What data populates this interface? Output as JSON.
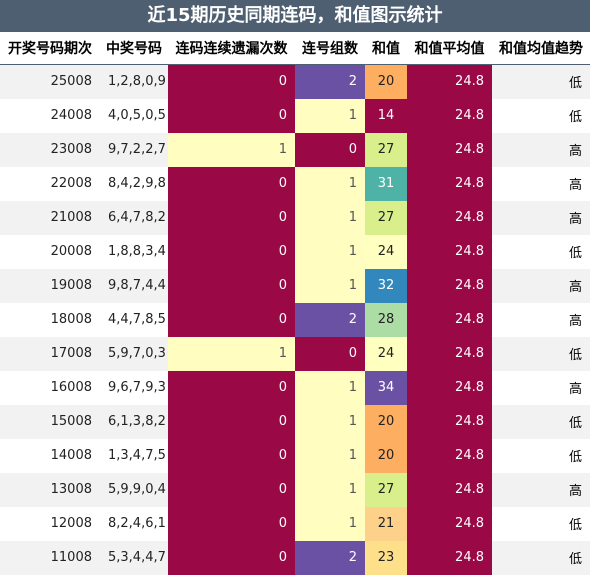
{
  "title": "近15期历史同期连码，和值图示统计",
  "colors": {
    "title_bg": "#4d5f70",
    "heat_0": "#9b0846",
    "heat_1": "#fffdbf",
    "heat_2": "#6a51a3",
    "avg_bg": "#9b0846",
    "sum_20": "#fdae61",
    "sum_21": "#fed18a",
    "sum_23": "#fee08b",
    "sum_24": "#ffffbf",
    "sum_27": "#d9ef8b",
    "sum_28": "#abdda4",
    "sum_31": "#4eb3a6",
    "sum_32": "#3288bd",
    "sum_34": "#6a51a3",
    "sum_14": "#9b0846"
  },
  "chart_data": {
    "type": "table",
    "columns": [
      "开奖号码期次",
      "中奖号码",
      "连码连续遗漏次数",
      "连号组数",
      "和值",
      "和值平均值",
      "和值均值趋势"
    ],
    "rows": [
      {
        "period": "25008",
        "numbers": "1,2,8,0,9",
        "miss": 0,
        "groups": 2,
        "sum": 20,
        "avg": "24.8",
        "trend": "低"
      },
      {
        "period": "24008",
        "numbers": "4,0,5,0,5",
        "miss": 0,
        "groups": 1,
        "sum": 14,
        "avg": "24.8",
        "trend": "低"
      },
      {
        "period": "23008",
        "numbers": "9,7,2,2,7",
        "miss": 1,
        "groups": 0,
        "sum": 27,
        "avg": "24.8",
        "trend": "高"
      },
      {
        "period": "22008",
        "numbers": "8,4,2,9,8",
        "miss": 0,
        "groups": 1,
        "sum": 31,
        "avg": "24.8",
        "trend": "高"
      },
      {
        "period": "21008",
        "numbers": "6,4,7,8,2",
        "miss": 0,
        "groups": 1,
        "sum": 27,
        "avg": "24.8",
        "trend": "高"
      },
      {
        "period": "20008",
        "numbers": "1,8,8,3,4",
        "miss": 0,
        "groups": 1,
        "sum": 24,
        "avg": "24.8",
        "trend": "低"
      },
      {
        "period": "19008",
        "numbers": "9,8,7,4,4",
        "miss": 0,
        "groups": 1,
        "sum": 32,
        "avg": "24.8",
        "trend": "高"
      },
      {
        "period": "18008",
        "numbers": "4,4,7,8,5",
        "miss": 0,
        "groups": 2,
        "sum": 28,
        "avg": "24.8",
        "trend": "高"
      },
      {
        "period": "17008",
        "numbers": "5,9,7,0,3",
        "miss": 1,
        "groups": 0,
        "sum": 24,
        "avg": "24.8",
        "trend": "低"
      },
      {
        "period": "16008",
        "numbers": "9,6,7,9,3",
        "miss": 0,
        "groups": 1,
        "sum": 34,
        "avg": "24.8",
        "trend": "高"
      },
      {
        "period": "15008",
        "numbers": "6,1,3,8,2",
        "miss": 0,
        "groups": 1,
        "sum": 20,
        "avg": "24.8",
        "trend": "低"
      },
      {
        "period": "14008",
        "numbers": "1,3,4,7,5",
        "miss": 0,
        "groups": 1,
        "sum": 20,
        "avg": "24.8",
        "trend": "低"
      },
      {
        "period": "13008",
        "numbers": "5,9,9,0,4",
        "miss": 0,
        "groups": 1,
        "sum": 27,
        "avg": "24.8",
        "trend": "高"
      },
      {
        "period": "12008",
        "numbers": "8,2,4,6,1",
        "miss": 0,
        "groups": 1,
        "sum": 21,
        "avg": "24.8",
        "trend": "低"
      },
      {
        "period": "11008",
        "numbers": "5,3,4,4,7",
        "miss": 0,
        "groups": 2,
        "sum": 23,
        "avg": "24.8",
        "trend": "低"
      }
    ]
  }
}
